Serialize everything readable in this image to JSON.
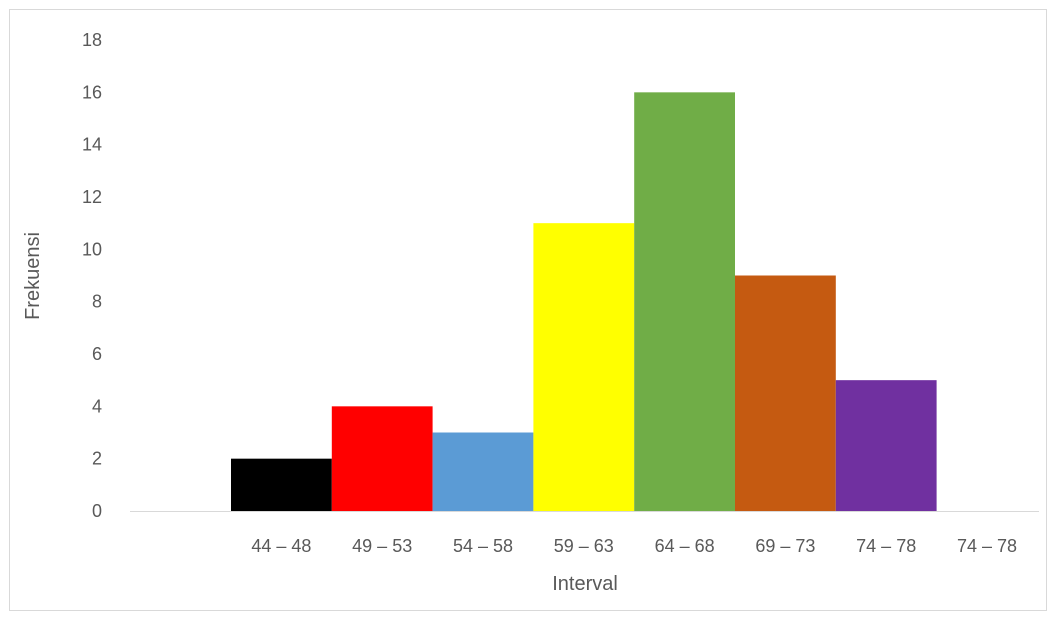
{
  "chart_data": {
    "type": "bar",
    "title": "",
    "xlabel": "Interval",
    "ylabel": "Frekuensi",
    "categories": [
      "44 – 48",
      "49 – 53",
      "54 – 58",
      "59 – 63",
      "64 – 68",
      "69 – 73",
      "74 – 78",
      "74 – 78"
    ],
    "values": [
      2,
      4,
      3,
      11,
      16,
      9,
      5,
      0
    ],
    "colors": [
      "#000000",
      "#ff0000",
      "#5b9bd5",
      "#ffff00",
      "#70ad47",
      "#c55a11",
      "#7030a0",
      "#ffffff"
    ],
    "ylim": [
      0,
      18
    ],
    "yticks": [
      0,
      2,
      4,
      6,
      8,
      10,
      12,
      14,
      16,
      18
    ],
    "grid": false,
    "legend": "none"
  }
}
